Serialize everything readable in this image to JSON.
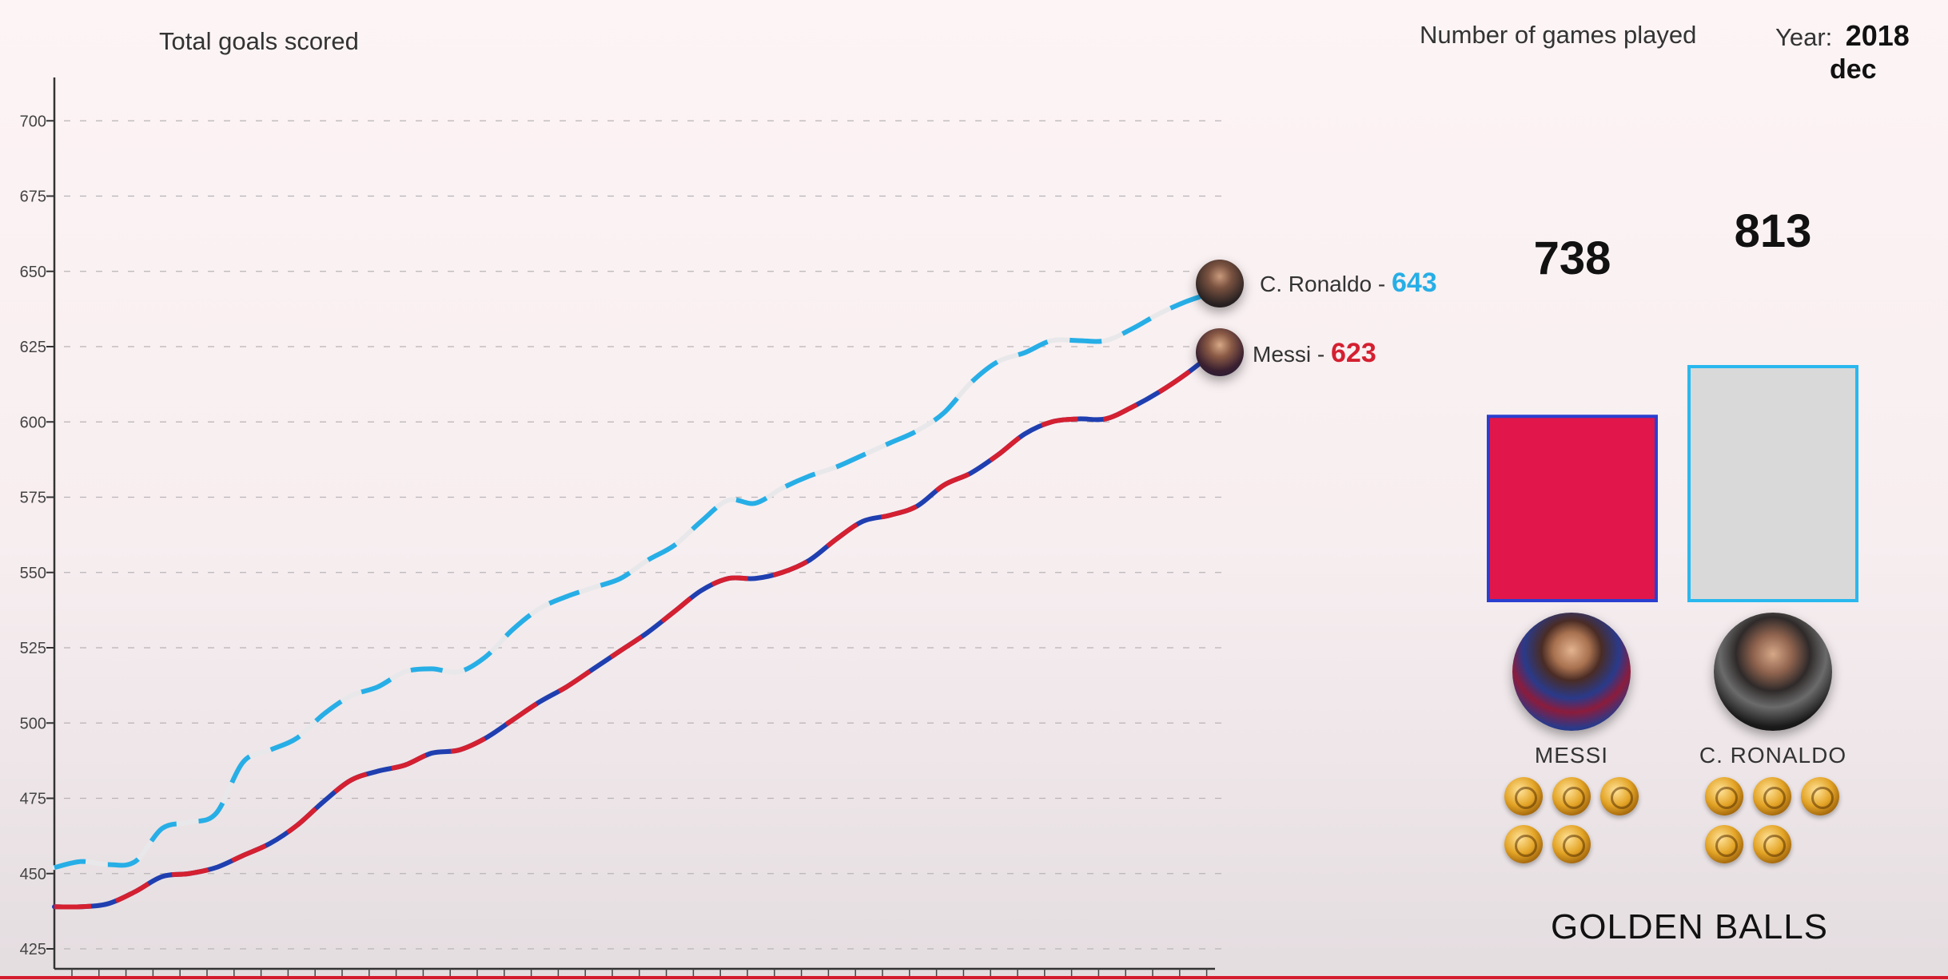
{
  "chart_data": [
    {
      "type": "line",
      "ylabel": "Total goals scored",
      "ylim": [
        420,
        710
      ],
      "yticks": [
        425,
        450,
        475,
        500,
        525,
        550,
        575,
        600,
        625,
        650,
        675,
        700
      ],
      "grid": true,
      "series": [
        {
          "name": "C. Ronaldo",
          "color": "#27aee6",
          "alt_color": "#e8e8ea",
          "end_value": "643",
          "values": [
            452,
            454,
            453,
            454,
            465,
            467,
            470,
            487,
            491,
            495,
            503,
            509,
            512,
            517,
            518,
            517,
            522,
            531,
            538,
            542,
            545,
            548,
            554,
            559,
            567,
            574,
            573,
            578,
            582,
            585,
            589,
            593,
            597,
            603,
            613,
            620,
            623,
            627,
            627,
            627,
            631,
            636,
            640,
            643
          ]
        },
        {
          "name": "Messi",
          "color": "#d42030",
          "alt_color": "#1f3fb0",
          "end_value": "623",
          "values": [
            439,
            439,
            440,
            444,
            449,
            450,
            452,
            456,
            460,
            466,
            474,
            481,
            484,
            486,
            490,
            491,
            495,
            501,
            507,
            512,
            518,
            524,
            530,
            537,
            544,
            548,
            548,
            550,
            554,
            561,
            567,
            569,
            572,
            579,
            583,
            589,
            596,
            600,
            601,
            601,
            605,
            610,
            616,
            623
          ]
        }
      ]
    },
    {
      "type": "bar",
      "title": "Number of games played",
      "categories": [
        "MESSI",
        "C. RONALDO"
      ],
      "values": [
        738,
        813
      ],
      "value_labels": [
        "738",
        "813"
      ],
      "colors": [
        "#e1164a",
        "#d9d9d9"
      ],
      "border_colors": [
        "#2a3fd0",
        "#2ab8ee"
      ]
    }
  ],
  "header": {
    "year_label": "Year:",
    "year": "2018",
    "month": "dec"
  },
  "players": [
    {
      "name": "Messi",
      "label": "Messi - ",
      "value": "623",
      "color": "#d42030",
      "upper": "MESSI",
      "golden_balls": 5
    },
    {
      "name": "C. Ronaldo",
      "label": "C. Ronaldo - ",
      "value": "643",
      "color": "#27aee6",
      "upper": "C. RONALDO",
      "golden_balls": 5
    }
  ],
  "golden_balls_title": "GOLDEN BALLS"
}
